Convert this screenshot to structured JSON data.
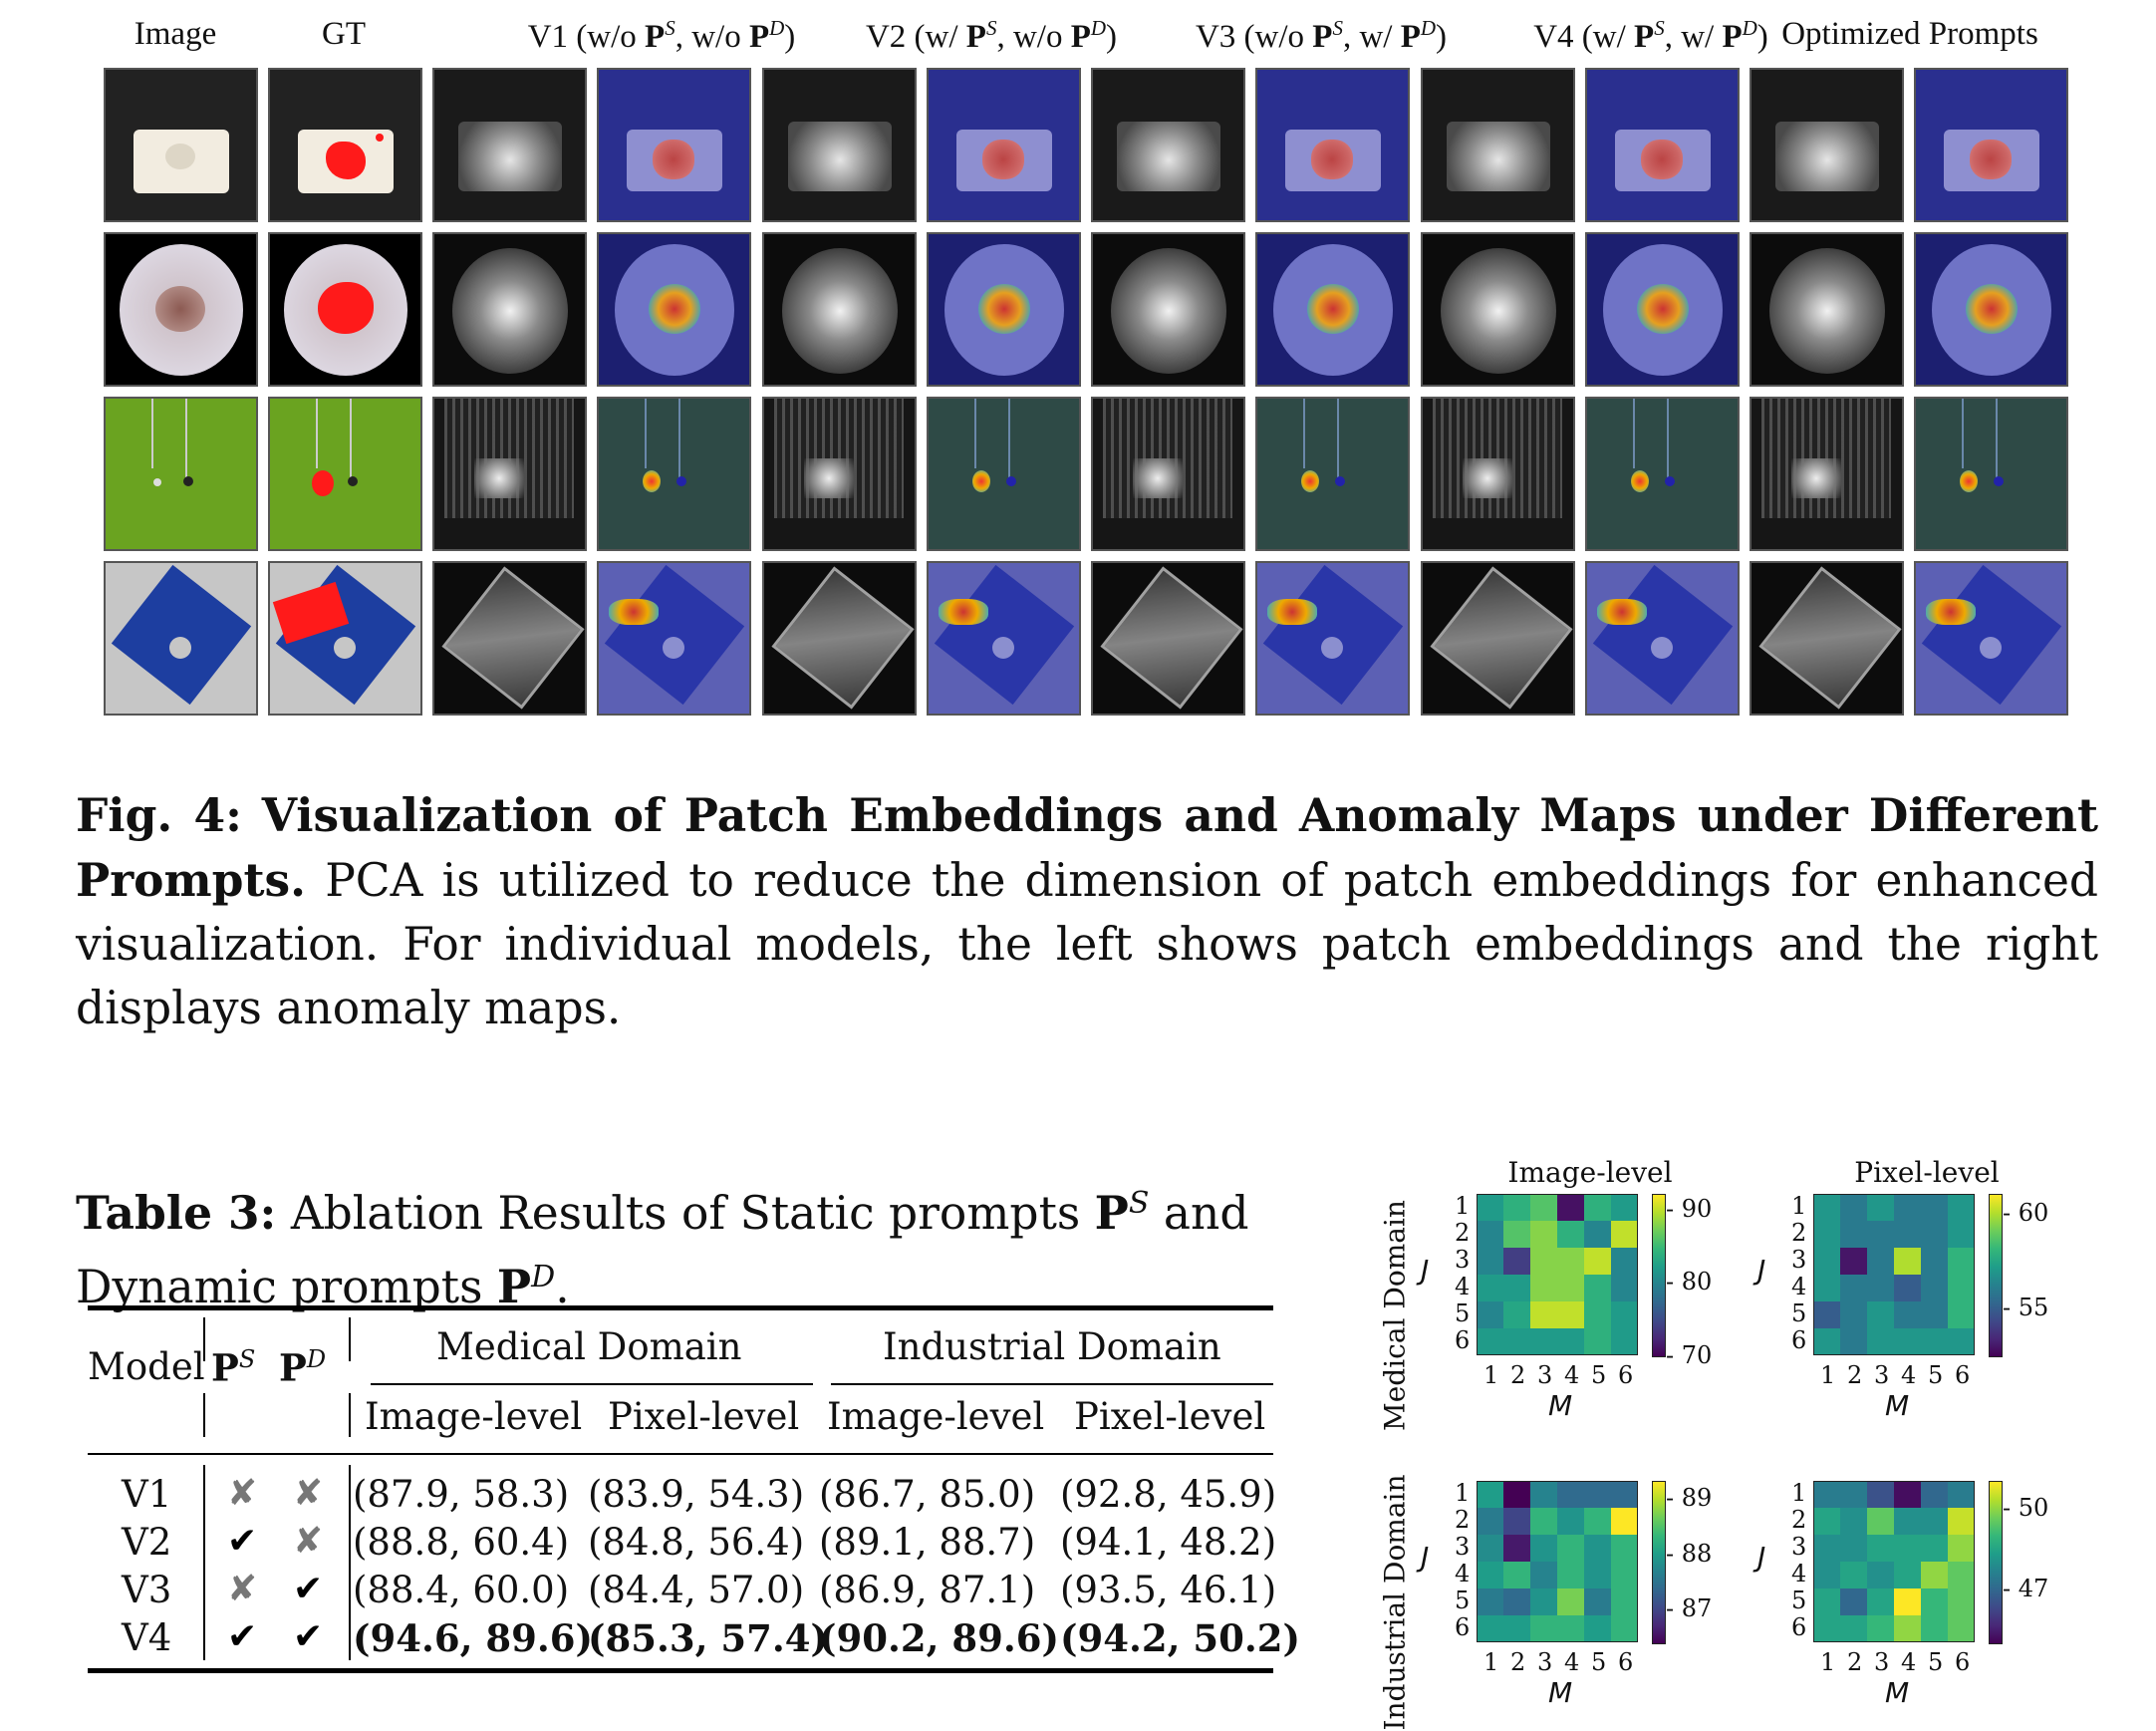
{
  "figure": {
    "columns": [
      {
        "label": "Image"
      },
      {
        "label": "GT"
      },
      {
        "pre": "V1 (w/o ",
        "p1": "P",
        "s1": "S",
        "mid": ", w/o ",
        "p2": "P",
        "s2": "D",
        "post": ")"
      },
      {
        "pre": "V2 (w/ ",
        "p1": "P",
        "s1": "S",
        "mid": ", w/o ",
        "p2": "P",
        "s2": "D",
        "post": ")"
      },
      {
        "pre": "V3 (w/o ",
        "p1": "P",
        "s1": "S",
        "mid": ", w/ ",
        "p2": "P",
        "s2": "D",
        "post": ")"
      },
      {
        "pre": "V4 (w/ ",
        "p1": "P",
        "s1": "S",
        "mid": ", w/ ",
        "p2": "P",
        "s2": "D",
        "post": ")"
      },
      {
        "label": "Optimized Prompts"
      }
    ],
    "colors": {
      "gt_mask": "#ff1a1a",
      "map_background": "#2a2f8f",
      "tile_border": "#555555"
    }
  },
  "caption": {
    "label": "Fig. 4:",
    "title": "Visualization of Patch Embeddings and Anomaly Maps under Different Prompts.",
    "text": "PCA is utilized to reduce the dimension of patch embeddings for enhanced visualization. For individual models, the left shows patch embeddings and the right displays anomaly maps."
  },
  "table": {
    "label": "Table 3:",
    "title_pre": "Ablation Results of Static prompts ",
    "ps_base": "P",
    "ps_sup": "S",
    "title_mid": " and Dynamic prompts ",
    "pd_base": "P",
    "pd_sup": "D",
    "title_post": ".",
    "headers": {
      "model": "Model",
      "ps": "P",
      "ps_sup": "S",
      "pd": "P",
      "pd_sup": "D",
      "medical": "Medical Domain",
      "industrial": "Industrial Domain",
      "image_level": "Image-level",
      "pixel_level": "Pixel-level"
    },
    "rows": [
      {
        "model": "V1",
        "ps": "✘",
        "pd": "✘",
        "cells": [
          "(87.9, 58.3)",
          "(83.9, 54.3)",
          "(86.7, 85.0)",
          "(92.8, 45.9)"
        ],
        "bold": false
      },
      {
        "model": "V2",
        "ps": "✔",
        "pd": "✘",
        "cells": [
          "(88.8, 60.4)",
          "(84.8, 56.4)",
          "(89.1, 88.7)",
          "(94.1, 48.2)"
        ],
        "bold": false
      },
      {
        "model": "V3",
        "ps": "✘",
        "pd": "✔",
        "cells": [
          "(88.4, 60.0)",
          "(84.4, 57.0)",
          "(86.9, 87.1)",
          "(93.5, 46.1)"
        ],
        "bold": false
      },
      {
        "model": "V4",
        "ps": "✔",
        "pd": "✔",
        "cells": [
          "(94.6, 89.6)",
          "(85.3, 57.4)",
          "(90.2, 89.6)",
          "(94.2, 50.2)"
        ],
        "bold": true
      }
    ]
  },
  "heatmaps": {
    "col_titles": [
      "Image-level",
      "Pixel-level"
    ],
    "row_labels": [
      "Medical Domain",
      "Industrial Domain"
    ],
    "x_label": "M",
    "y_label": "J",
    "ticks": [
      "1",
      "2",
      "3",
      "4",
      "5",
      "6"
    ]
  },
  "chart_data": [
    {
      "type": "heatmap",
      "title": "Image-level",
      "ylabel": "J",
      "xlabel": "M",
      "x": [
        1,
        2,
        3,
        4,
        5,
        6
      ],
      "y": [
        1,
        2,
        3,
        4,
        5,
        6
      ],
      "colorbar_range": [
        70,
        92
      ],
      "colorbar_ticks": [
        "70",
        "80",
        "90"
      ],
      "values": [
        [
          82,
          84,
          86,
          71,
          84,
          82
        ],
        [
          80,
          86,
          88,
          84,
          80,
          90
        ],
        [
          80,
          74,
          88,
          88,
          90,
          80
        ],
        [
          82,
          82,
          88,
          88,
          84,
          80
        ],
        [
          80,
          83,
          90,
          90,
          84,
          82
        ],
        [
          82,
          82,
          82,
          82,
          84,
          82
        ]
      ]
    },
    {
      "type": "heatmap",
      "title": "Pixel-level",
      "ylabel": "J",
      "xlabel": "M",
      "x": [
        1,
        2,
        3,
        4,
        5,
        6
      ],
      "y": [
        1,
        2,
        3,
        4,
        5,
        6
      ],
      "colorbar_range": [
        52.5,
        61
      ],
      "colorbar_ticks": [
        "55",
        "60"
      ],
      "values": [
        [
          57,
          56,
          57,
          56,
          56,
          57
        ],
        [
          57,
          56,
          56,
          56,
          56,
          57
        ],
        [
          57,
          53,
          56,
          60,
          56,
          58
        ],
        [
          57,
          56,
          56,
          55,
          56,
          58
        ],
        [
          55,
          56,
          57,
          56,
          56,
          58
        ],
        [
          57,
          56,
          57,
          57,
          57,
          57
        ]
      ]
    },
    {
      "type": "heatmap",
      "title": "",
      "ylabel": "J",
      "xlabel": "M",
      "x": [
        1,
        2,
        3,
        4,
        5,
        6
      ],
      "y": [
        1,
        2,
        3,
        4,
        5,
        6
      ],
      "colorbar_range": [
        86.4,
        89.3
      ],
      "colorbar_ticks": [
        "87",
        "88",
        "89"
      ],
      "values": [
        [
          88.0,
          86.4,
          87.7,
          87.4,
          87.4,
          87.4
        ],
        [
          87.6,
          87.0,
          88.3,
          87.9,
          88.3,
          89.3
        ],
        [
          87.8,
          86.6,
          87.9,
          88.3,
          87.9,
          88.3
        ],
        [
          88.0,
          88.3,
          87.7,
          88.3,
          87.9,
          88.3
        ],
        [
          87.6,
          87.4,
          87.9,
          88.7,
          87.6,
          88.3
        ],
        [
          88.0,
          88.0,
          88.3,
          88.3,
          88.0,
          88.3
        ]
      ]
    },
    {
      "type": "heatmap",
      "title": "",
      "ylabel": "J",
      "xlabel": "M",
      "x": [
        1,
        2,
        3,
        4,
        5,
        6
      ],
      "y": [
        1,
        2,
        3,
        4,
        5,
        6
      ],
      "colorbar_range": [
        45,
        51
      ],
      "colorbar_ticks": [
        "47",
        "50"
      ],
      "values": [
        [
          47.5,
          47.5,
          46.5,
          45.2,
          47.0,
          47.5
        ],
        [
          48.5,
          48.0,
          49.5,
          48.0,
          48.0,
          50.5
        ],
        [
          48.0,
          48.0,
          48.5,
          48.5,
          48.5,
          50.0
        ],
        [
          48.0,
          48.5,
          48.0,
          48.5,
          50.0,
          49.5
        ],
        [
          48.5,
          47.0,
          48.5,
          51.0,
          49.0,
          49.5
        ],
        [
          48.5,
          48.5,
          49.0,
          50.0,
          49.0,
          49.5
        ]
      ]
    }
  ]
}
